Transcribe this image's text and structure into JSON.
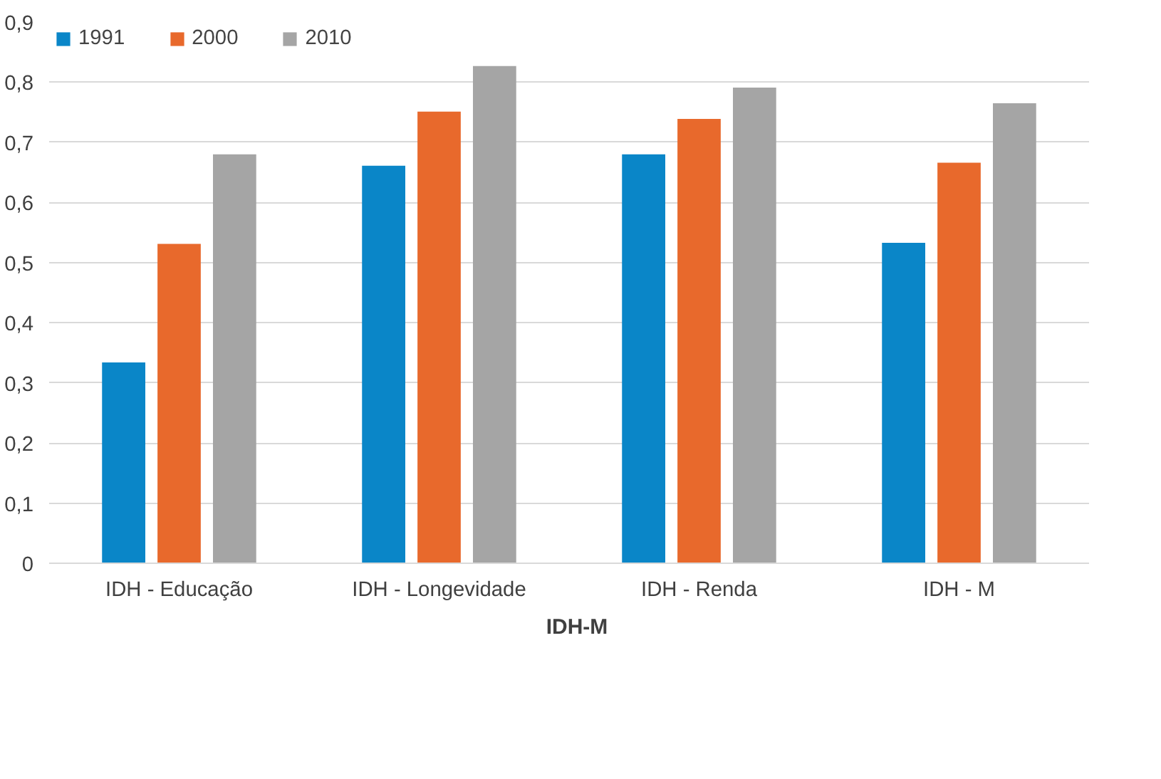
{
  "chart_data": {
    "type": "bar",
    "title": "IDH-M",
    "categories": [
      "IDH - Educação",
      "IDH - Longevidade",
      "IDH - Renda",
      "IDH - M"
    ],
    "series": [
      {
        "name": "1991",
        "color": "#0a86c8",
        "values": [
          0.334,
          0.661,
          0.68,
          0.533
        ]
      },
      {
        "name": "2000",
        "color": "#e8692c",
        "values": [
          0.531,
          0.751,
          0.739,
          0.666
        ]
      },
      {
        "name": "2010",
        "color": "#a5a5a5",
        "values": [
          0.68,
          0.827,
          0.791,
          0.765
        ]
      }
    ],
    "ylim": [
      0,
      0.9
    ],
    "yticks": [
      0,
      {
        "value": 0.1,
        "label": "0,1"
      },
      {
        "value": 0.2,
        "label": "0,2"
      },
      {
        "value": 0.3,
        "label": "0,3"
      },
      {
        "value": 0.4,
        "label": "0,4"
      },
      {
        "value": 0.5,
        "label": "0,5"
      },
      {
        "value": 0.6,
        "label": "0,6"
      },
      {
        "value": 0.7,
        "label": "0,7"
      },
      {
        "value": 0.8,
        "label": "0,8"
      },
      {
        "value": 0.9,
        "label": "0,9"
      }
    ],
    "grid": "y",
    "legend": "top left"
  }
}
